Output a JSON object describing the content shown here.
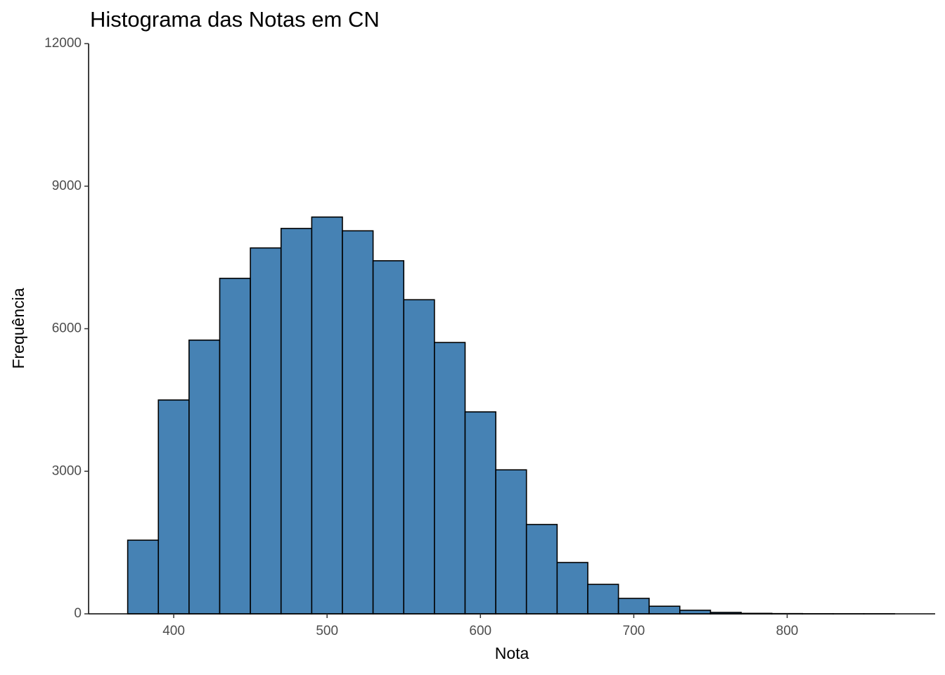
{
  "chart_data": {
    "type": "histogram",
    "title": "Histograma das Notas em CN",
    "x_label": "Nota",
    "y_label": "Frequência",
    "bins": [
      370,
      390,
      410,
      430,
      450,
      470,
      490,
      510,
      530,
      550,
      570,
      590,
      610,
      630,
      650,
      670,
      690,
      710,
      730,
      750,
      770,
      790,
      810,
      830,
      850,
      870
    ],
    "values": [
      1550,
      4500,
      5760,
      7060,
      7700,
      8110,
      8350,
      8060,
      7430,
      6610,
      5710,
      4250,
      3030,
      1880,
      1080,
      620,
      325,
      160,
      75,
      30,
      10,
      5,
      2,
      1,
      1
    ],
    "color": "#4682b4",
    "edge_color": "#000000",
    "xlim": [
      344.5,
      896.5
    ],
    "xticks": [
      400,
      500,
      600,
      700,
      800
    ],
    "ylim": [
      0,
      12000
    ],
    "yticks": [
      0,
      3000,
      6000,
      9000,
      12000
    ]
  }
}
